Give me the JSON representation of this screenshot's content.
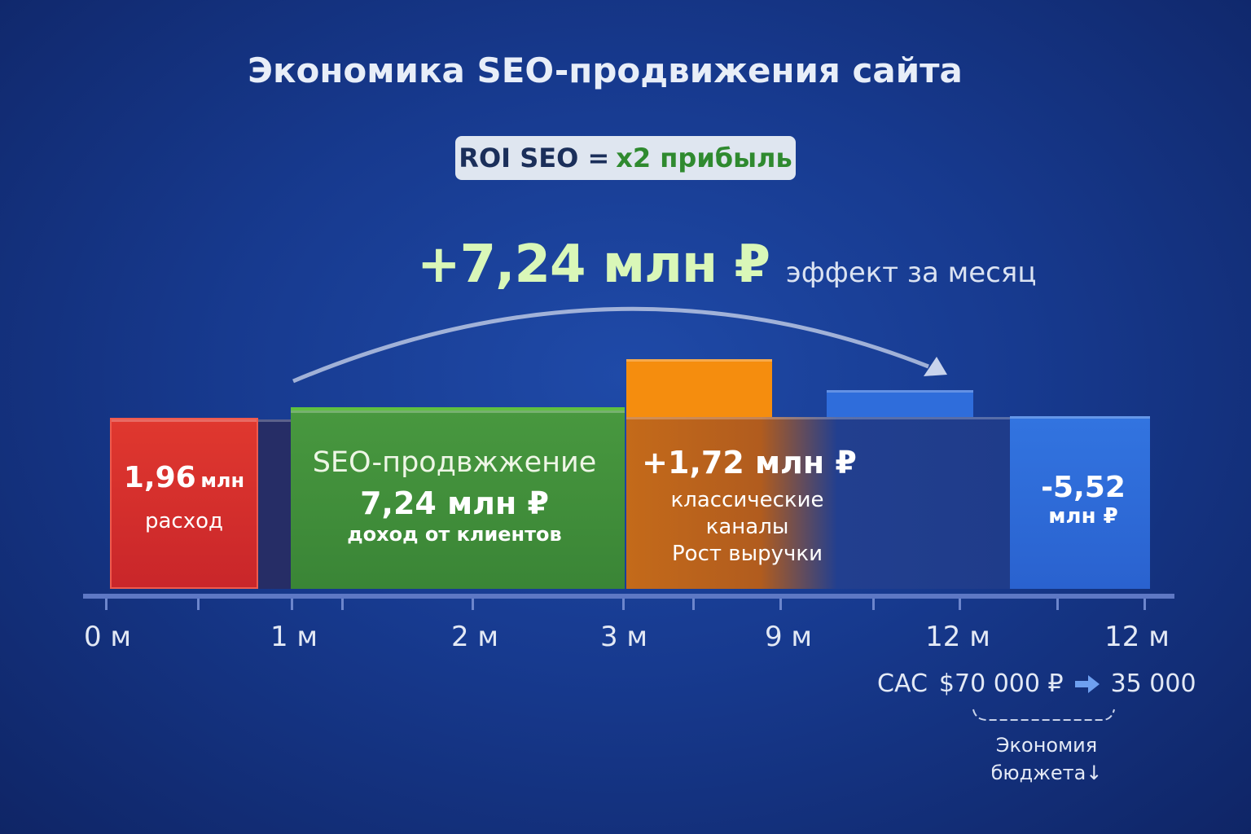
{
  "title": "Экономика SEO-продвижения сайта",
  "roi_badge": {
    "prefix": "ROI SEO =",
    "value": "x2 прибыль"
  },
  "headline": {
    "value": "+7,24 млн ₽",
    "caption": "эффект за месяц"
  },
  "chart_data": {
    "type": "bar",
    "title": "Экономика SEO-продвижения сайта",
    "x_tick_labels": [
      "0 м",
      "1 м",
      "2 м",
      "3 м",
      "9 м",
      "12 м",
      "12 м"
    ],
    "blocks": [
      {
        "name": "expense",
        "value_label": "1,96",
        "unit": "млн",
        "caption": "расход",
        "color": "#d9302c"
      },
      {
        "name": "seo",
        "title": "SEO-продвжжение",
        "value_label": "7,24 млн ₽",
        "caption": "доход от клиентов",
        "color": "#3f8f3a"
      },
      {
        "name": "classic",
        "value_label": "+1,72 млн ₽",
        "caption_lines": [
          "классические",
          "каналы",
          "Рост выручки"
        ],
        "color": "#f0880e"
      },
      {
        "name": "result",
        "value_label": "-5,52",
        "unit": "млн ₽",
        "color": "#2f6ad8"
      }
    ]
  },
  "cac": {
    "label": "CAC",
    "from": "$70 000 ₽",
    "to": "35 000",
    "arrow_icon": "arrow-right-icon"
  },
  "savings": {
    "line1": "Экономия",
    "line2": "бюджета↓"
  },
  "colors": {
    "background": "#173a8f",
    "red": "#d9302c",
    "green": "#3f8f3a",
    "orange": "#f0880e",
    "blue": "#2f6ad8"
  }
}
